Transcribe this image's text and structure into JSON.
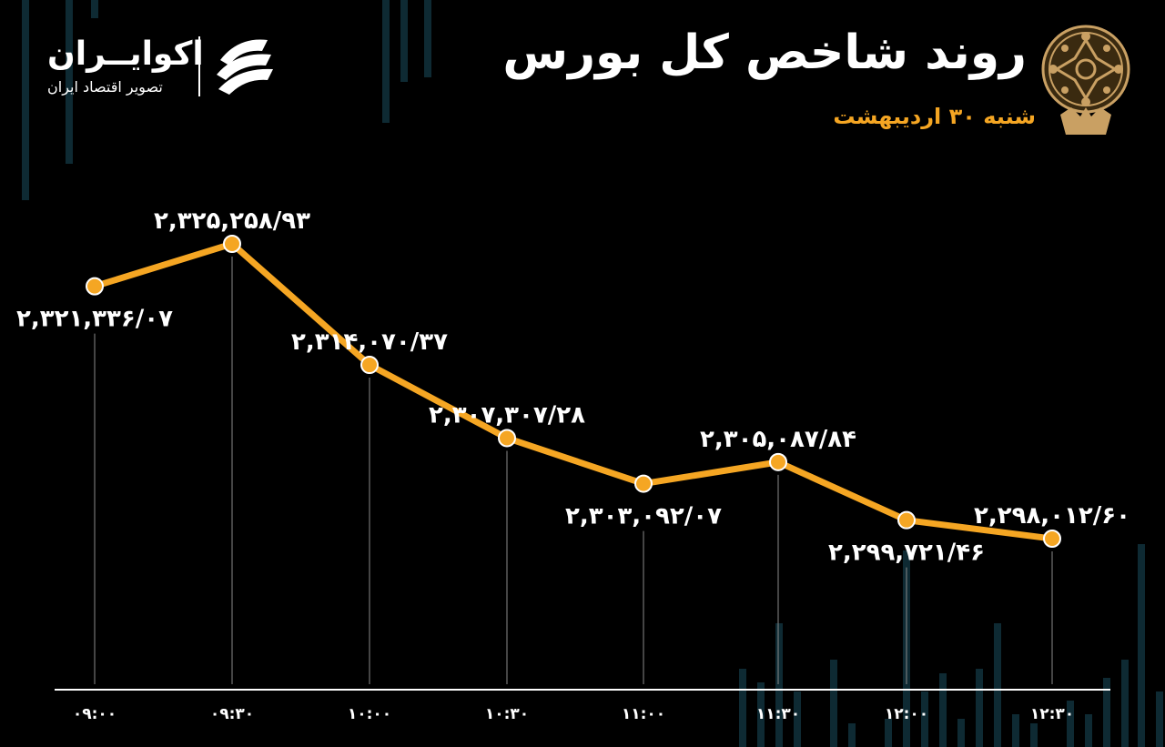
{
  "header": {
    "title": "روند شاخص کل بورس",
    "subtitle": "شنبه ۳۰ اردیبهشت",
    "emblem_icon": "stock-exchange-emblem-icon"
  },
  "brand": {
    "name": "اکوایــران",
    "tagline": "تصویر اقتصاد ایران",
    "logo_icon": "ecoiran-logo-icon"
  },
  "colors": {
    "background": "#000000",
    "line": "#f5a623",
    "point_fill": "#f5a623",
    "point_stroke": "#ffffff",
    "labels": "#ffffff",
    "axis": "#ffffff",
    "guides": "#8a8a8a",
    "subtitle": "#f5a623",
    "background_bars": "#0e2a33"
  },
  "chart_data": {
    "type": "line",
    "title": "روند شاخص کل بورس",
    "xlabel": "",
    "ylabel": "",
    "grid": false,
    "categories": [
      "۰۹:۰۰",
      "۰۹:۳۰",
      "۱۰:۰۰",
      "۱۰:۳۰",
      "۱۱:۰۰",
      "۱۱:۳۰",
      "۱۲:۰۰",
      "۱۲:۳۰"
    ],
    "values": [
      2321336.07,
      2325258.93,
      2314070.37,
      2307307.28,
      2303092.07,
      2305087.84,
      2299721.46,
      2298012.6
    ],
    "value_labels": [
      "۲,۳۲۱,۳۳۶/۰۷",
      "۲,۳۲۵,۲۵۸/۹۳",
      "۲,۳۱۴,۰۷۰/۳۷",
      "۲,۳۰۷,۳۰۷/۲۸",
      "۲,۳۰۳,۰۹۲/۰۷",
      "۲,۳۰۵,۰۸۷/۸۴",
      "۲,۲۹۹,۷۲۱/۴۶",
      "۲,۲۹۸,۰۱۲/۶۰"
    ],
    "label_position": [
      "below",
      "above",
      "above",
      "above",
      "below",
      "above",
      "below",
      "above"
    ]
  }
}
